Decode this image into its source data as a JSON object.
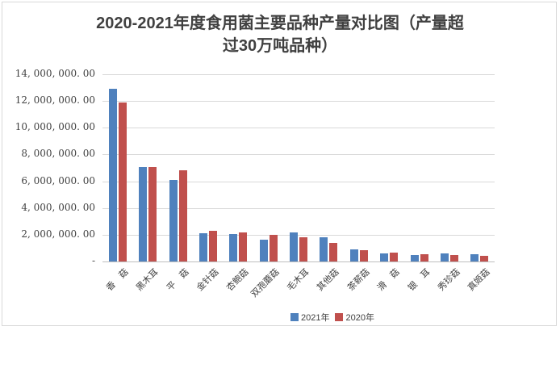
{
  "title": {
    "line1": "2020-2021年度食用菌主要品种产量对比图（产量超",
    "line2": "过30万吨品种）",
    "full": "2020-2021年度食用菌主要品种产量对比图（产量超过30万吨品种）"
  },
  "chart_data": {
    "type": "bar",
    "title": "2020-2021年度食用菌主要品种产量对比图（产量超过30万吨品种）",
    "categories": [
      "香　菇",
      "黑木耳",
      "平　菇",
      "金针菇",
      "杏鲍菇",
      "双孢蘑菇",
      "毛木耳",
      "其他菇",
      "茶薪菇",
      "滑　菇",
      "银　耳",
      "秀珍菇",
      "真姬菇"
    ],
    "series": [
      {
        "name": "2021年",
        "color": "#4F81BD",
        "values": [
          12900000,
          7050000,
          6100000,
          2100000,
          2050000,
          1600000,
          2200000,
          1800000,
          900000,
          600000,
          500000,
          620000,
          540000
        ]
      },
      {
        "name": "2020年",
        "color": "#C0504D",
        "values": [
          11900000,
          7050000,
          6800000,
          2300000,
          2150000,
          2000000,
          1800000,
          1400000,
          850000,
          650000,
          550000,
          480000,
          420000
        ]
      }
    ],
    "xlabel": "",
    "ylabel": "",
    "ylim": [
      0,
      14000000
    ],
    "y_tick_interval": 2000000,
    "y_ticks": [
      {
        "value": 14000000,
        "label": "14, 000, 000. 00"
      },
      {
        "value": 12000000,
        "label": "12, 000, 000. 00"
      },
      {
        "value": 10000000,
        "label": "10, 000, 000. 00"
      },
      {
        "value": 8000000,
        "label": "8, 000, 000. 00"
      },
      {
        "value": 6000000,
        "label": "6, 000, 000. 00"
      },
      {
        "value": 4000000,
        "label": "4, 000, 000. 00"
      },
      {
        "value": 2000000,
        "label": "2, 000, 000. 00"
      },
      {
        "value": 0,
        "label": "-"
      }
    ],
    "grid": true,
    "legend_position": "bottom"
  }
}
